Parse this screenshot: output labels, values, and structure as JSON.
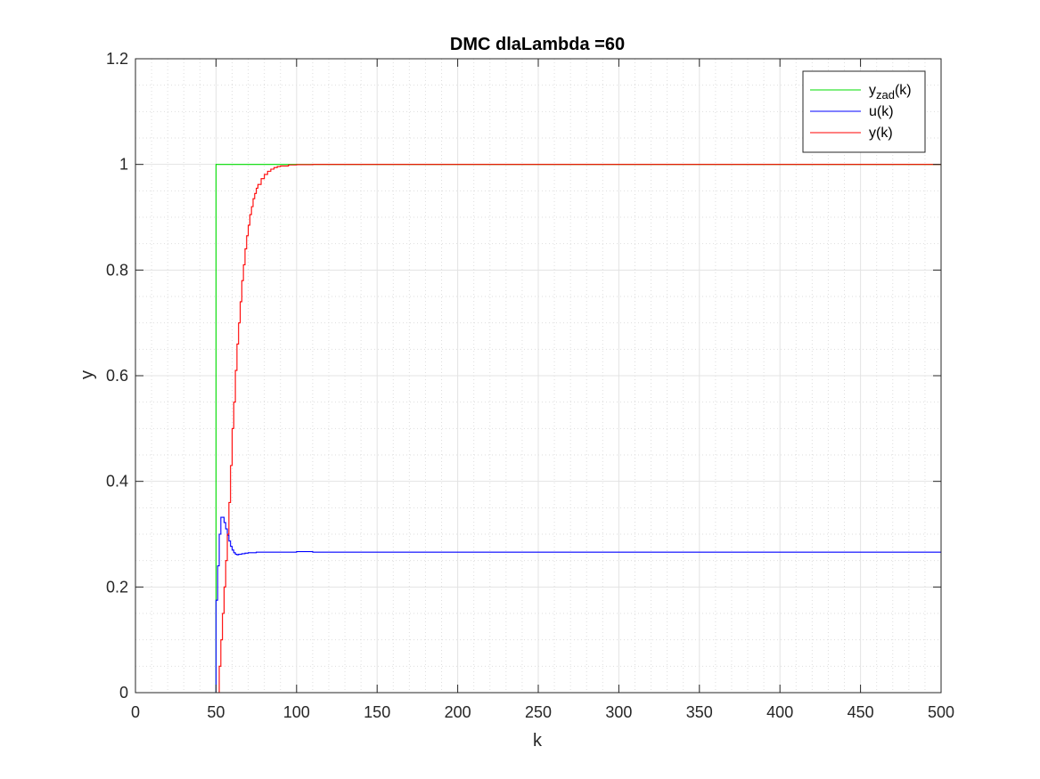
{
  "chart_data": {
    "type": "line",
    "title": "DMC dlaLambda =60",
    "xlabel": "k",
    "ylabel": "y",
    "xlim": [
      0,
      500
    ],
    "ylim": [
      0,
      1.2
    ],
    "xticks": [
      0,
      50,
      100,
      150,
      200,
      250,
      300,
      350,
      400,
      450,
      500
    ],
    "yticks": [
      0,
      0.2,
      0.4,
      0.6,
      0.8,
      1,
      1.2
    ],
    "xtick_labels": [
      "0",
      "50",
      "100",
      "150",
      "200",
      "250",
      "300",
      "350",
      "400",
      "450",
      "500"
    ],
    "ytick_labels": [
      "0",
      "0.2",
      "0.4",
      "0.6",
      "0.8",
      "1",
      "1.2"
    ],
    "grid": true,
    "minor_grid": true,
    "legend_position": "top-right",
    "series": [
      {
        "name": "y_zad(k)",
        "legend_base": "y",
        "legend_sub": "zad",
        "legend_suffix": "(k)",
        "color": "#00dd00",
        "style": "stairs",
        "x": [
          0,
          50,
          500
        ],
        "y": [
          0,
          1,
          1
        ]
      },
      {
        "name": "u(k)",
        "legend_base": "u(k)",
        "legend_sub": "",
        "legend_suffix": "",
        "color": "#0000ff",
        "style": "stairs",
        "x": [
          0,
          50,
          51,
          52,
          53,
          54,
          55,
          56,
          57,
          58,
          59,
          60,
          61,
          62,
          63,
          64,
          66,
          68,
          70,
          75,
          80,
          90,
          100,
          110,
          120,
          500
        ],
        "y": [
          0,
          0.175,
          0.24,
          0.3,
          0.332,
          0.332,
          0.322,
          0.31,
          0.298,
          0.287,
          0.277,
          0.27,
          0.265,
          0.262,
          0.261,
          0.262,
          0.263,
          0.264,
          0.265,
          0.266,
          0.266,
          0.266,
          0.267,
          0.266,
          0.266,
          0.266
        ]
      },
      {
        "name": "y(k)",
        "legend_base": "y(k)",
        "legend_sub": "",
        "legend_suffix": "",
        "color": "#ff0000",
        "style": "stairs",
        "x": [
          0,
          52,
          53,
          54,
          55,
          56,
          57,
          58,
          59,
          60,
          61,
          62,
          63,
          64,
          65,
          66,
          67,
          68,
          69,
          70,
          71,
          72,
          73,
          74,
          75,
          76,
          78,
          80,
          82,
          84,
          86,
          88,
          90,
          95,
          100,
          110,
          120,
          500
        ],
        "y": [
          0,
          0.05,
          0.1,
          0.15,
          0.2,
          0.25,
          0.3,
          0.36,
          0.43,
          0.5,
          0.55,
          0.61,
          0.66,
          0.7,
          0.74,
          0.78,
          0.81,
          0.84,
          0.865,
          0.885,
          0.905,
          0.92,
          0.935,
          0.945,
          0.955,
          0.962,
          0.973,
          0.981,
          0.987,
          0.991,
          0.994,
          0.996,
          0.997,
          0.999,
          0.9995,
          1.0,
          1.0,
          1.0
        ]
      }
    ]
  }
}
